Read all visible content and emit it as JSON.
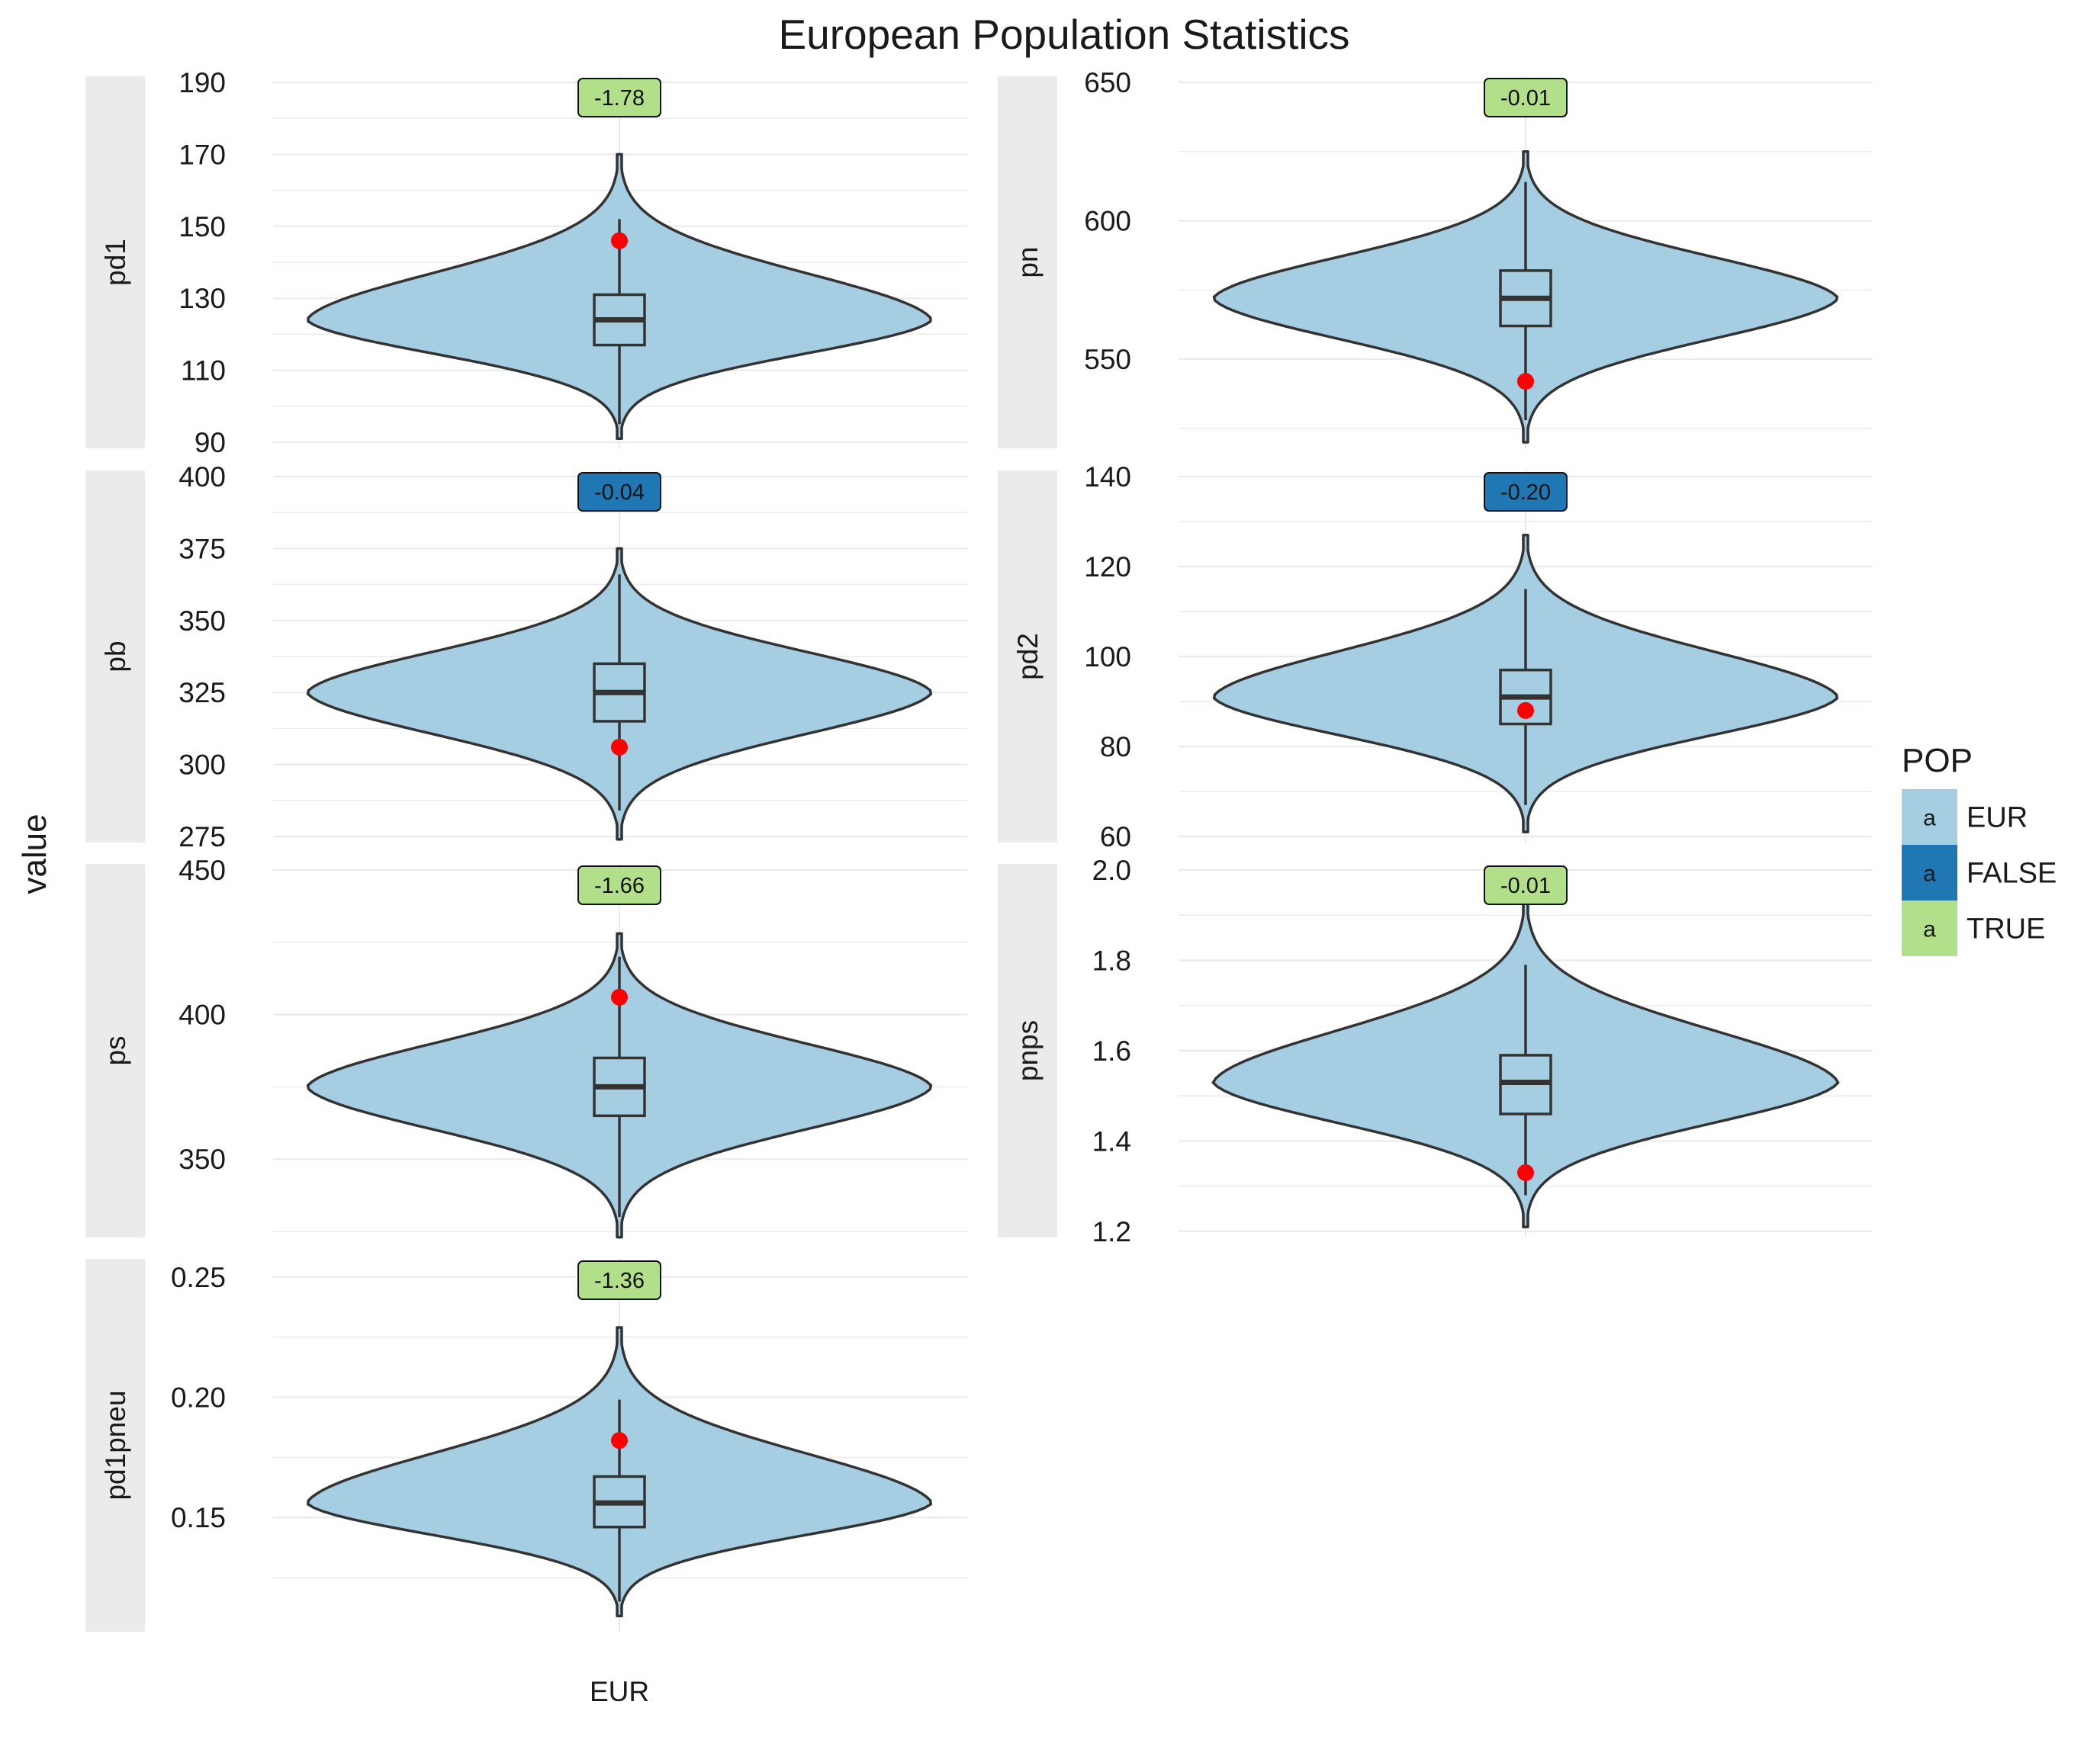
{
  "chart_data": {
    "type": "violin",
    "title": "European Population Statistics",
    "ylabel": "value",
    "xlabel": "",
    "categories": [
      "EUR"
    ],
    "layout": "facet_wrap, 2 columns, free y scales",
    "facets": [
      {
        "id": "pd1",
        "strip": "pd1",
        "ylim": [
          90,
          190
        ],
        "yticks": [
          90,
          110,
          130,
          150,
          170,
          190
        ],
        "ytick_labels": [
          "90",
          "110",
          "130",
          "150",
          "170",
          "190"
        ],
        "violin_range": [
          91,
          170
        ],
        "violin_widest_at": 124,
        "box": {
          "q1": 117,
          "median": 124,
          "q3": 131,
          "whisker_low": 95,
          "whisker_high": 152
        },
        "point": 146,
        "badge": {
          "label": "-1.78",
          "group": "TRUE"
        }
      },
      {
        "id": "pn",
        "strip": "pn",
        "ylim": [
          520,
          650
        ],
        "yticks": [
          550,
          600,
          650
        ],
        "ytick_labels": [
          "550",
          "600",
          "650"
        ],
        "violin_range": [
          520,
          625
        ],
        "violin_widest_at": 572,
        "box": {
          "q1": 562,
          "median": 572,
          "q3": 582,
          "whisker_low": 528,
          "whisker_high": 614
        },
        "point": 542,
        "badge": {
          "label": "-0.01",
          "group": "TRUE"
        }
      },
      {
        "id": "pb",
        "strip": "pb",
        "ylim": [
          275,
          400
        ],
        "yticks": [
          275,
          300,
          325,
          350,
          375,
          400
        ],
        "ytick_labels": [
          "275",
          "300",
          "325",
          "350",
          "375",
          "400"
        ],
        "violin_range": [
          274,
          375
        ],
        "violin_widest_at": 325,
        "box": {
          "q1": 315,
          "median": 325,
          "q3": 335,
          "whisker_low": 284,
          "whisker_high": 366
        },
        "point": 306,
        "badge": {
          "label": "-0.04",
          "group": "FALSE"
        }
      },
      {
        "id": "pd2",
        "strip": "pd2",
        "ylim": [
          60,
          140
        ],
        "yticks": [
          60,
          80,
          100,
          120,
          140
        ],
        "ytick_labels": [
          "60",
          "80",
          "100",
          "120",
          "140"
        ],
        "violin_range": [
          61,
          127
        ],
        "violin_widest_at": 91,
        "box": {
          "q1": 85,
          "median": 91,
          "q3": 97,
          "whisker_low": 67,
          "whisker_high": 115
        },
        "point": 88,
        "badge": {
          "label": "-0.20",
          "group": "FALSE"
        }
      },
      {
        "id": "ps",
        "strip": "ps",
        "ylim": [
          325,
          450
        ],
        "yticks": [
          350,
          400,
          450
        ],
        "ytick_labels": [
          "350",
          "400",
          "450"
        ],
        "violin_range": [
          323,
          428
        ],
        "violin_widest_at": 375,
        "box": {
          "q1": 365,
          "median": 375,
          "q3": 385,
          "whisker_low": 330,
          "whisker_high": 420
        },
        "point": 406,
        "badge": {
          "label": "-1.66",
          "group": "TRUE"
        }
      },
      {
        "id": "pnps",
        "strip": "pnps",
        "ylim": [
          1.2,
          2.0
        ],
        "yticks": [
          1.2,
          1.4,
          1.6,
          1.8,
          2.0
        ],
        "ytick_labels": [
          "1.2",
          "1.4",
          "1.6",
          "1.8",
          "2.0"
        ],
        "violin_range": [
          1.21,
          1.94
        ],
        "violin_widest_at": 1.53,
        "box": {
          "q1": 1.46,
          "median": 1.53,
          "q3": 1.59,
          "whisker_low": 1.28,
          "whisker_high": 1.79
        },
        "point": 1.33,
        "badge": {
          "label": "-0.01",
          "group": "TRUE"
        }
      },
      {
        "id": "pd1pneu",
        "strip": "pd1pneu",
        "ylim": [
          0.105,
          0.255
        ],
        "yticks": [
          0.15,
          0.2,
          0.25
        ],
        "ytick_labels": [
          "0.15",
          "0.20",
          "0.25"
        ],
        "violin_range": [
          0.109,
          0.229
        ],
        "violin_widest_at": 0.156,
        "box": {
          "q1": 0.146,
          "median": 0.156,
          "q3": 0.167,
          "whisker_low": 0.115,
          "whisker_high": 0.199
        },
        "point": 0.182,
        "badge": {
          "label": "-1.36",
          "group": "TRUE"
        }
      }
    ],
    "legend": {
      "title": "POP",
      "position": "right",
      "key_glyph": "a",
      "items": [
        {
          "label": "EUR",
          "color": "#a6cee3"
        },
        {
          "label": "FALSE",
          "color": "#1f78b4"
        },
        {
          "label": "TRUE",
          "color": "#b2df8a"
        }
      ]
    },
    "colors": {
      "violin_fill": "#a6cee3",
      "outline": "#333333",
      "point": "#ff0000",
      "strip_bg": "#ebebeb",
      "grid": "#ebebeb",
      "badge_TRUE": "#b2df8a",
      "badge_FALSE": "#1f78b4"
    },
    "grid": true
  }
}
